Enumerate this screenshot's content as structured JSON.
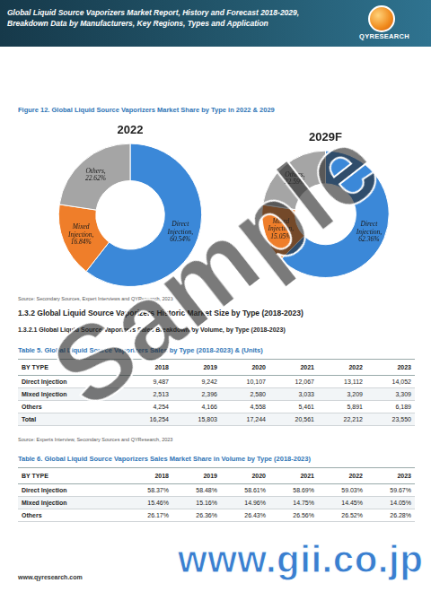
{
  "header": {
    "title": "Global Liquid Source Vaporizers Market Report, History and Forecast 2018-2029, Breakdown Data by Manufacturers, Key Regions, Types and Application",
    "logo": "QYRESEARCH"
  },
  "figure": {
    "title": "Figure 12.  Global Liquid Source Vaporizers Market Share by Type in 2022 & 2029",
    "source": "Source: Secondary Sources, Expert Interviews and QYResearch, 2023"
  },
  "chart_data": [
    {
      "type": "doughnut",
      "title": "2022",
      "categories": [
        "Direct Injection",
        "Mixed Injection",
        "Others"
      ],
      "values": [
        60.54,
        16.84,
        22.62
      ],
      "value_labels": [
        "Direct Injection, 60.54%",
        "Mixed Injection, 16.84%",
        "Others, 22.62%"
      ],
      "colors": [
        "#3b88d8",
        "#ef7e2a",
        "#a5a5a5"
      ],
      "data_labels": true
    },
    {
      "type": "doughnut",
      "title": "2029F",
      "categories": [
        "Direct Injection",
        "Mixed Injection",
        "Others"
      ],
      "values": [
        62.36,
        15.05,
        22.59
      ],
      "value_labels": [
        "Direct Injection, 62.36%",
        "Mixed Injection, 15.05%",
        "Others, 22.59%"
      ],
      "colors": [
        "#3b88d8",
        "#ef7e2a",
        "#a5a5a5"
      ],
      "data_labels": true
    }
  ],
  "sections": [
    "1.3.2  Global Liquid Source Vaporizers Historic Market Size by Type (2018-2023)",
    "1.3.2.1  Global Liquid Source Vaporizers Sales Breakdown by Volume, by Type (2018-2023)"
  ],
  "tables": [
    {
      "title": "Table 5.   Global Liquid Source Vaporizers Sales by Type (2018-2023) & (Units)",
      "columns": [
        "BY TYPE",
        "2018",
        "2019",
        "2020",
        "2021",
        "2022",
        "2023"
      ],
      "rows": [
        [
          "Direct Injection",
          "9,487",
          "9,242",
          "10,107",
          "12,067",
          "13,112",
          "14,052"
        ],
        [
          "Mixed Injection",
          "2,513",
          "2,396",
          "2,580",
          "3,033",
          "3,209",
          "3,309"
        ],
        [
          "Others",
          "4,254",
          "4,166",
          "4,558",
          "5,461",
          "5,891",
          "6,189"
        ],
        [
          "Total",
          "16,254",
          "15,803",
          "17,244",
          "20,561",
          "22,212",
          "23,550"
        ]
      ],
      "source": "Source: Experts Interview, Secondary Sources and QYResearch, 2023"
    },
    {
      "title": "Table 6.   Global Liquid Source Vaporizers Sales Market Share in Volume by Type (2018-2023)",
      "columns": [
        "BY TYPE",
        "2018",
        "2019",
        "2020",
        "2021",
        "2022",
        "2023"
      ],
      "rows": [
        [
          "Direct Injection",
          "58.37%",
          "58.48%",
          "58.61%",
          "58.69%",
          "59.03%",
          "59.67%"
        ],
        [
          "Mixed Injection",
          "15.46%",
          "15.16%",
          "14.96%",
          "14.75%",
          "14.45%",
          "14.05%"
        ],
        [
          "Others",
          "26.17%",
          "26.36%",
          "26.43%",
          "26.56%",
          "26.52%",
          "26.28%"
        ]
      ]
    }
  ],
  "footer": {
    "url": "www.qyresearch.com"
  },
  "watermarks": [
    "Sample",
    "www.gii.co.jp"
  ]
}
